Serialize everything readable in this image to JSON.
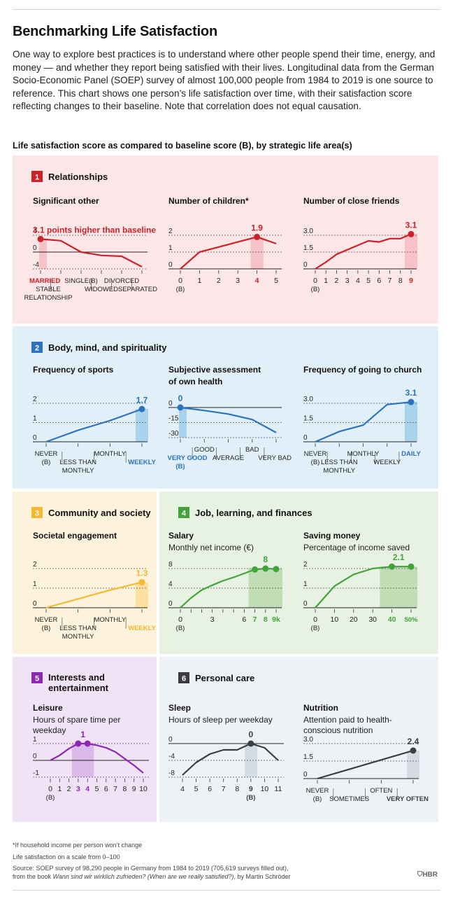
{
  "title": "Benchmarking Life Satisfaction",
  "intro": "One way to explore best practices is to understand where other people spend their time, energy, and money — and whether they report being satisfied with their lives. Longitudinal data from the German Socio-Economic Panel (SOEP) survey of almost 100,000 people from 1984 to 2019 is one source to reference. This chart shows one person’s life satisfaction over time, with their satisfaction score reflecting changes to their baseline. Note that correlation does not equal causation.",
  "chart_title": "Life satisfaction score as compared to baseline score (B), by strategic life area(s)",
  "footnotes": {
    "asterisk": "*If household income per person won’t change",
    "scale": "Life satisfaction on a scale from 0–100",
    "source_prefix": "Source: SOEP survey of 98,290 people in Germany from 1984 to 2019 (705,619 surveys filled out),",
    "source_line2_a": "from the book ",
    "source_book": "Wann sind wir wirklich zufrieden? (When are we really satisfied?)",
    "source_line2_b": ", by Martin Schröder"
  },
  "brand": "HBR",
  "colors": {
    "relationships": {
      "bg": "#fbe6e8",
      "line": "#cc2229",
      "hi": "#f6c2c8"
    },
    "body": {
      "bg": "#e1f0f8",
      "line": "#2b72bf",
      "hi": "#a8d3ea"
    },
    "community": {
      "bg": "#fdf3dc",
      "line": "#f5b82e",
      "hi": "#fbe0a0"
    },
    "job": {
      "bg": "#e8f2e3",
      "line": "#41a339",
      "hi": "#c0ddb6"
    },
    "interests": {
      "bg": "#f0e3f5",
      "line": "#8c27b5",
      "hi": "#dab8e8"
    },
    "personal": {
      "bg": "#eef2f6",
      "line": "#3b3d40",
      "hi": "#d3dbe3"
    }
  },
  "sections": [
    {
      "num": "1",
      "title": "Relationships",
      "color": "relationships"
    },
    {
      "num": "2",
      "title": "Body, mind, and spirituality",
      "color": "body"
    },
    {
      "num": "3",
      "title": "Community and society",
      "color": "community"
    },
    {
      "num": "4",
      "title": "Job, learning, and finances",
      "color": "job"
    },
    {
      "num": "5",
      "title": "Interests and entertainment",
      "color": "interests"
    },
    {
      "num": "6",
      "title": "Personal care",
      "color": "personal"
    }
  ],
  "chart_data": [
    {
      "type": "line",
      "section": "1",
      "color": "relationships",
      "title": "Significant other",
      "subtitle": "",
      "yticks": [
        "4",
        "0",
        "-4"
      ],
      "ylim": [
        -4,
        4
      ],
      "zero_index": 1,
      "categories": [
        "MARRIED",
        "STABLE RELATIONSHIP",
        "SINGLE(B)",
        "WIDOWED",
        "DIVORCED",
        "SEPARATED"
      ],
      "values": [
        3.1,
        2.7,
        0,
        -0.8,
        -1,
        -3.5
      ],
      "highlight_index": 0,
      "highlight_label": "3.1 points higher than baseline",
      "xlabels": [
        {
          "text": "MARRIED",
          "at": 0,
          "row": 0,
          "emph": true
        },
        {
          "text": "STABLE",
          "at": 1,
          "row": 1
        },
        {
          "text": "RELATIONSHIP",
          "at": 1,
          "row": 2
        },
        {
          "text": "SINGLE(B)",
          "at": 2,
          "row": 0
        },
        {
          "text": "WIDOWED",
          "at": 3,
          "row": 1
        },
        {
          "text": "DIVORCED",
          "at": 4,
          "row": 0
        },
        {
          "text": "SEPARATED",
          "at": 5,
          "row": 1
        }
      ],
      "separators": [
        0.5,
        2.5,
        3.5,
        4.5
      ]
    },
    {
      "type": "line",
      "section": "1",
      "color": "relationships",
      "title": "Number of children*",
      "subtitle": "",
      "yticks": [
        "2",
        "1",
        "0"
      ],
      "ylim": [
        0,
        2
      ],
      "categories": [
        "0",
        "1",
        "2",
        "3",
        "4",
        "5"
      ],
      "values": [
        0,
        1.0,
        1.3,
        1.6,
        1.9,
        1.5
      ],
      "highlight_index": 4,
      "highlight_label": "1.9",
      "xlabels": [
        {
          "text": "0",
          "at": 0,
          "row": 0
        },
        {
          "text": "(B)",
          "at": 0,
          "row": 1
        },
        {
          "text": "1",
          "at": 1,
          "row": 0
        },
        {
          "text": "2",
          "at": 2,
          "row": 0
        },
        {
          "text": "3",
          "at": 3,
          "row": 0
        },
        {
          "text": "4",
          "at": 4,
          "row": 0,
          "emph": true
        },
        {
          "text": "5",
          "at": 5,
          "row": 0
        }
      ]
    },
    {
      "type": "line",
      "section": "1",
      "color": "relationships",
      "title": "Number of close friends",
      "subtitle": "",
      "yticks": [
        "3.0",
        "1.5",
        "0"
      ],
      "ylim": [
        0,
        3.0
      ],
      "categories": [
        "0",
        "1",
        "2",
        "3",
        "4",
        "5",
        "6",
        "7",
        "8",
        "9"
      ],
      "values": [
        0,
        0.6,
        1.3,
        1.7,
        2.1,
        2.5,
        2.4,
        2.7,
        2.7,
        3.1
      ],
      "highlight_index": 9,
      "highlight_label": "3.1",
      "xlabels": [
        {
          "text": "0",
          "at": 0,
          "row": 0
        },
        {
          "text": "(B)",
          "at": 0,
          "row": 1
        },
        {
          "text": "1",
          "at": 1,
          "row": 0
        },
        {
          "text": "2",
          "at": 2,
          "row": 0
        },
        {
          "text": "3",
          "at": 3,
          "row": 0
        },
        {
          "text": "4",
          "at": 4,
          "row": 0
        },
        {
          "text": "5",
          "at": 5,
          "row": 0
        },
        {
          "text": "6",
          "at": 6,
          "row": 0
        },
        {
          "text": "7",
          "at": 7,
          "row": 0
        },
        {
          "text": "8",
          "at": 8,
          "row": 0
        },
        {
          "text": "9",
          "at": 9,
          "row": 0,
          "emph": true
        }
      ]
    },
    {
      "type": "line",
      "section": "2",
      "color": "body",
      "title": "Frequency of sports",
      "subtitle": "",
      "yticks": [
        "2",
        "1",
        "0"
      ],
      "ylim": [
        0,
        2
      ],
      "categories": [
        "NEVER (B)",
        "LESS THAN MONTHLY",
        "MONTHLY",
        "WEEKLY"
      ],
      "values": [
        0,
        0.6,
        1.1,
        1.7
      ],
      "highlight_index": 3,
      "highlight_label": "1.7",
      "xlabels": [
        {
          "text": "NEVER",
          "at": 0,
          "row": 0
        },
        {
          "text": "(B)",
          "at": 0,
          "row": 1
        },
        {
          "text": "LESS THAN",
          "at": 1,
          "row": 1
        },
        {
          "text": "MONTHLY",
          "at": 1,
          "row": 2
        },
        {
          "text": "MONTHLY",
          "at": 2,
          "row": 0
        },
        {
          "text": "WEEKLY",
          "at": 3,
          "row": 1,
          "emph": true
        }
      ],
      "separators": [
        0.5,
        1.5,
        2.5
      ]
    },
    {
      "type": "line",
      "section": "2",
      "color": "body",
      "title": "Subjective assessment",
      "title2": "of own health",
      "yticks": [
        "0",
        "-15",
        "-30"
      ],
      "ylim": [
        -30,
        0
      ],
      "categories": [
        "VERY GOOD (B)",
        "GOOD",
        "AVERAGE",
        "BAD",
        "VERY BAD"
      ],
      "values": [
        0,
        -3,
        -6.5,
        -12,
        -25
      ],
      "highlight_index": 0,
      "highlight_label": "0",
      "xlabels": [
        {
          "text": "GOOD",
          "at": 1,
          "row": 0
        },
        {
          "text": "VERY GOOD",
          "at": 0,
          "row": 1,
          "emph": true
        },
        {
          "text": "(B)",
          "at": 0,
          "row": 2,
          "emph": true
        },
        {
          "text": "AVERAGE",
          "at": 2,
          "row": 1
        },
        {
          "text": "BAD",
          "at": 3,
          "row": 0
        },
        {
          "text": "VERY BAD",
          "at": 4,
          "row": 1
        }
      ],
      "separators": [
        0.5,
        1.5,
        2.5,
        3.5
      ]
    },
    {
      "type": "line",
      "section": "2",
      "color": "body",
      "title": "Frequency of going to church",
      "subtitle": "",
      "yticks": [
        "3.0",
        "1.5",
        "0"
      ],
      "ylim": [
        0,
        3.0
      ],
      "categories": [
        "NEVER (B)",
        "LESS THAN MONTHLY",
        "MONTHLY",
        "WEEKLY",
        "DAILY"
      ],
      "values": [
        0,
        0.8,
        1.3,
        2.9,
        3.1
      ],
      "highlight_index": 4,
      "highlight_label": "3.1",
      "xlabels": [
        {
          "text": "NEVER",
          "at": 0,
          "row": 0
        },
        {
          "text": "(B)",
          "at": 0,
          "row": 1
        },
        {
          "text": "LESS THAN",
          "at": 1,
          "row": 1
        },
        {
          "text": "MONTHLY",
          "at": 1,
          "row": 2
        },
        {
          "text": "MONTHLY",
          "at": 2,
          "row": 0
        },
        {
          "text": "WEEKLY",
          "at": 3,
          "row": 1
        },
        {
          "text": "DAILY",
          "at": 4,
          "row": 0,
          "emph": true
        }
      ],
      "separators": [
        0.5,
        1.5,
        2.5,
        3.5
      ]
    },
    {
      "type": "line",
      "section": "3",
      "color": "community",
      "title": "Societal engagement",
      "subtitle": "",
      "yticks": [
        "2",
        "1",
        "0"
      ],
      "ylim": [
        0,
        2
      ],
      "categories": [
        "NEVER (B)",
        "LESS THAN MONTHLY",
        "MONTHLY",
        "WEEKLY"
      ],
      "values": [
        0,
        0.45,
        0.9,
        1.3
      ],
      "highlight_index": 3,
      "highlight_label": "1.3",
      "xlabels": [
        {
          "text": "NEVER",
          "at": 0,
          "row": 0
        },
        {
          "text": "(B)",
          "at": 0,
          "row": 1
        },
        {
          "text": "LESS THAN",
          "at": 1,
          "row": 1
        },
        {
          "text": "MONTHLY",
          "at": 1,
          "row": 2
        },
        {
          "text": "MONTHLY",
          "at": 2,
          "row": 0
        },
        {
          "text": "WEEKLY",
          "at": 3,
          "row": 1,
          "emph": true
        }
      ],
      "separators": [
        0.5,
        1.5,
        2.5
      ]
    },
    {
      "type": "line",
      "section": "4",
      "color": "job",
      "title": "Salary",
      "subtitle": "Monthly net income (€)",
      "yticks": [
        "8",
        "4",
        "0"
      ],
      "ylim": [
        0,
        8
      ],
      "categories": [
        "0",
        "1",
        "2",
        "3",
        "4",
        "5",
        "6",
        "7",
        "8",
        "9k"
      ],
      "values": [
        0,
        2.0,
        3.6,
        4.6,
        5.5,
        6.2,
        7.0,
        7.8,
        8.0,
        7.9
      ],
      "highlight_range": [
        7,
        9
      ],
      "highlight_label": "8",
      "xlabels": [
        {
          "text": "0",
          "at": 0,
          "row": 0
        },
        {
          "text": "(B)",
          "at": 0,
          "row": 1
        },
        {
          "text": "3",
          "at": 3,
          "row": 0
        },
        {
          "text": "6",
          "at": 6,
          "row": 0
        },
        {
          "text": "7",
          "at": 7,
          "row": 0,
          "emph": true
        },
        {
          "text": "8",
          "at": 8,
          "row": 0,
          "emph": true
        },
        {
          "text": "9k",
          "at": 9,
          "row": 0,
          "emph": true
        }
      ]
    },
    {
      "type": "line",
      "section": "4",
      "color": "job",
      "title": "Saving money",
      "subtitle": "Percentage of income saved",
      "yticks": [
        "2",
        "1",
        "0"
      ],
      "ylim": [
        0,
        2
      ],
      "categories": [
        "0",
        "10",
        "20",
        "30",
        "40",
        "50%"
      ],
      "values": [
        0,
        1.1,
        1.7,
        2.0,
        2.1,
        2.1
      ],
      "highlight_range": [
        3.7,
        5
      ],
      "highlight_label": "2.1",
      "xlabels": [
        {
          "text": "0",
          "at": 0,
          "row": 0
        },
        {
          "text": "(B)",
          "at": 0,
          "row": 1
        },
        {
          "text": "10",
          "at": 1,
          "row": 0
        },
        {
          "text": "20",
          "at": 2,
          "row": 0
        },
        {
          "text": "30",
          "at": 3,
          "row": 0
        },
        {
          "text": "40",
          "at": 4,
          "row": 0,
          "emph": true
        },
        {
          "text": "50%",
          "at": 5,
          "row": 0,
          "emph": true
        }
      ]
    },
    {
      "type": "line",
      "section": "5",
      "color": "interests",
      "title": "Leisure",
      "subtitle": "Hours of spare time per",
      "subtitle2": "weekday",
      "yticks": [
        "1",
        "0",
        "-1"
      ],
      "ylim": [
        -1,
        1
      ],
      "zero_index": 1,
      "categories": [
        "0",
        "1",
        "2",
        "3",
        "4",
        "5",
        "6",
        "7",
        "8",
        "9",
        "10"
      ],
      "values": [
        0,
        0.3,
        0.7,
        1.0,
        1.0,
        0.9,
        0.75,
        0.5,
        0.1,
        -0.3,
        -0.75
      ],
      "highlight_range": [
        3,
        4
      ],
      "highlight_label": "1",
      "xlabels": [
        {
          "text": "0",
          "at": 0,
          "row": 0
        },
        {
          "text": "(B)",
          "at": 0,
          "row": 1
        },
        {
          "text": "1",
          "at": 1,
          "row": 0
        },
        {
          "text": "2",
          "at": 2,
          "row": 0
        },
        {
          "text": "3",
          "at": 3,
          "row": 0,
          "emph": true
        },
        {
          "text": "4",
          "at": 4,
          "row": 0,
          "emph": true
        },
        {
          "text": "5",
          "at": 5,
          "row": 0
        },
        {
          "text": "6",
          "at": 6,
          "row": 0
        },
        {
          "text": "7",
          "at": 7,
          "row": 0
        },
        {
          "text": "8",
          "at": 8,
          "row": 0
        },
        {
          "text": "9",
          "at": 9,
          "row": 0
        },
        {
          "text": "10",
          "at": 10,
          "row": 0
        }
      ]
    },
    {
      "type": "line",
      "section": "6",
      "color": "personal",
      "title": "Sleep",
      "subtitle": "Hours of sleep per weekday",
      "yticks": [
        "0",
        "-4",
        "-8"
      ],
      "ylim": [
        -8,
        0
      ],
      "categories": [
        "4",
        "5",
        "6",
        "7",
        "8",
        "9",
        "10",
        "11"
      ],
      "values": [
        -7.5,
        -4.5,
        -2.5,
        -1.5,
        -1.5,
        0,
        -1,
        -4
      ],
      "highlight_index": 5,
      "highlight_label": "0",
      "xlabels": [
        {
          "text": "4",
          "at": 0,
          "row": 0
        },
        {
          "text": "5",
          "at": 1,
          "row": 0
        },
        {
          "text": "6",
          "at": 2,
          "row": 0
        },
        {
          "text": "7",
          "at": 3,
          "row": 0
        },
        {
          "text": "8",
          "at": 4,
          "row": 0
        },
        {
          "text": "9",
          "at": 5,
          "row": 0,
          "emph": true
        },
        {
          "text": "(B)",
          "at": 5,
          "row": 1,
          "emph": true
        },
        {
          "text": "10",
          "at": 6,
          "row": 0
        },
        {
          "text": "11",
          "at": 7,
          "row": 0
        }
      ]
    },
    {
      "type": "line",
      "section": "6",
      "color": "personal",
      "title": "Nutrition",
      "subtitle": "Attention paid to health-",
      "subtitle2": "conscious nutrition",
      "yticks": [
        "3.0",
        "1.5",
        "0"
      ],
      "ylim": [
        0,
        3.0
      ],
      "categories": [
        "NEVER (B)",
        "SOMETIMES",
        "OFTEN",
        "VERY OFTEN"
      ],
      "values": [
        0,
        0.8,
        1.6,
        2.4
      ],
      "highlight_index": 3,
      "highlight_label": "2.4",
      "xlabels": [
        {
          "text": "NEVER",
          "at": 0,
          "row": 0
        },
        {
          "text": "(B)",
          "at": 0,
          "row": 1
        },
        {
          "text": "SOMETIMES",
          "at": 1,
          "row": 1
        },
        {
          "text": "OFTEN",
          "at": 2,
          "row": 0
        },
        {
          "text": "VERY OFTEN",
          "at": 3,
          "row": 1,
          "emph": true
        }
      ],
      "separators": [
        0.5,
        1.5,
        2.5
      ]
    }
  ]
}
